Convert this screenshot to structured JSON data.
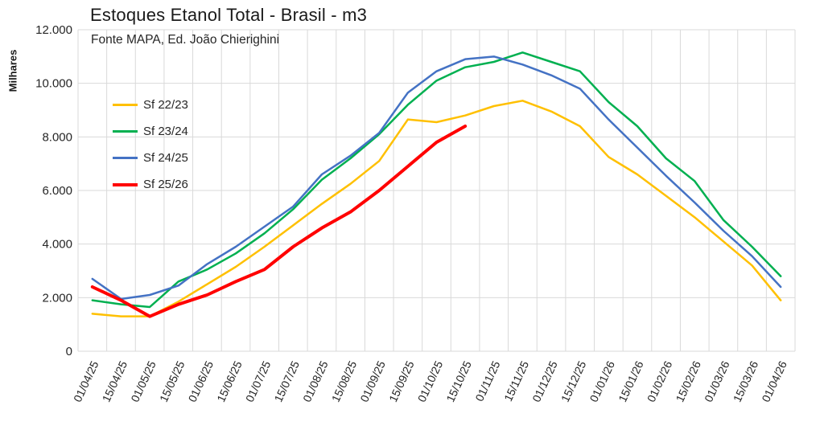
{
  "header": {
    "title": "Estoques Etanol Total - Brasil - m3",
    "subtitle": "Fonte MAPA, Ed. João Chierighini"
  },
  "chart_data": {
    "type": "line",
    "title": "Estoques Etanol Total - Brasil - m3",
    "subtitle": "Fonte MAPA, Ed. João Chierighini",
    "xlabel": "",
    "ylabel": "Milhares",
    "ylim": [
      0,
      12000
    ],
    "grid": true,
    "legend_position": "upper-left",
    "gridline_color": "#d9d9d9",
    "y_ticks": [
      {
        "value": 0,
        "label": "0"
      },
      {
        "value": 2000,
        "label": "2.000"
      },
      {
        "value": 4000,
        "label": "4.000"
      },
      {
        "value": 6000,
        "label": "6.000"
      },
      {
        "value": 8000,
        "label": "8.000"
      },
      {
        "value": 10000,
        "label": "10.000"
      },
      {
        "value": 12000,
        "label": "12.000"
      }
    ],
    "categories": [
      "01/04/25",
      "15/04/25",
      "01/05/25",
      "15/05/25",
      "01/06/25",
      "15/06/25",
      "01/07/25",
      "15/07/25",
      "01/08/25",
      "15/08/25",
      "01/09/25",
      "15/09/25",
      "01/10/25",
      "15/10/25",
      "01/11/25",
      "15/11/25",
      "01/12/25",
      "15/12/25",
      "01/01/26",
      "15/01/26",
      "01/02/26",
      "15/02/26",
      "01/03/26",
      "15/03/26",
      "01/04/26"
    ],
    "series": [
      {
        "name": "Sf 22/23",
        "color": "#FFC000",
        "stroke_width": 2.5,
        "values": [
          1400,
          1300,
          1300,
          1850,
          2500,
          3150,
          3900,
          4700,
          5500,
          6250,
          7100,
          8650,
          8550,
          8800,
          9150,
          9350,
          8950,
          8400,
          7250,
          6600,
          5800,
          5000,
          4100,
          3200,
          1900
        ]
      },
      {
        "name": "Sf 23/24",
        "color": "#00B050",
        "stroke_width": 2.5,
        "values": [
          1900,
          1750,
          1650,
          2600,
          3050,
          3650,
          4400,
          5300,
          6400,
          7200,
          8100,
          9200,
          10100,
          10600,
          10800,
          11150,
          10800,
          10450,
          9300,
          8400,
          7200,
          6350,
          4900,
          3900,
          2800
        ]
      },
      {
        "name": "Sf 24/25",
        "color": "#4472C4",
        "stroke_width": 2.5,
        "values": [
          2700,
          1950,
          2100,
          2450,
          3250,
          3900,
          4650,
          5400,
          6600,
          7300,
          8150,
          9650,
          10450,
          10900,
          11000,
          10700,
          10300,
          9800,
          8650,
          7600,
          6550,
          5550,
          4500,
          3550,
          2400
        ]
      },
      {
        "name": "Sf 25/26",
        "color": "#FF0000",
        "stroke_width": 4,
        "values": [
          2400,
          1900,
          1300,
          1750,
          2100,
          2600,
          3050,
          3900,
          4600,
          5200,
          6000,
          6900,
          7800,
          8400
        ]
      }
    ]
  }
}
